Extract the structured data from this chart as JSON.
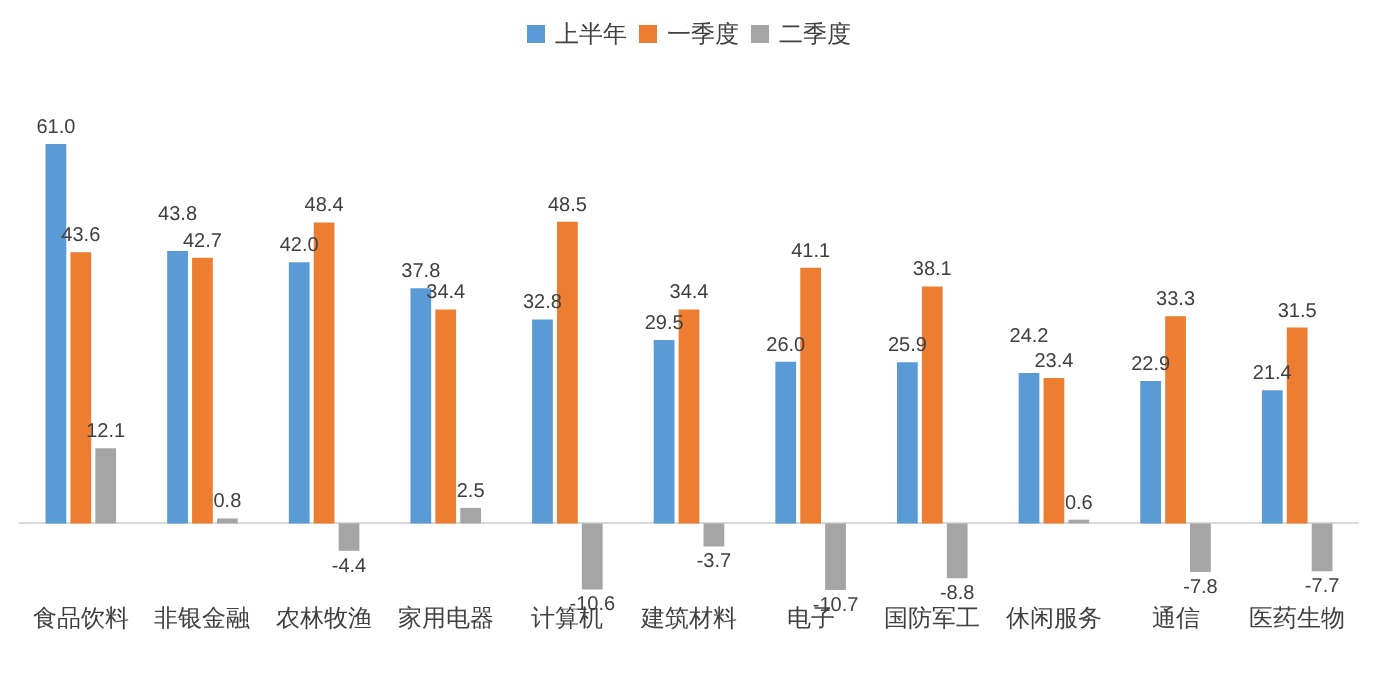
{
  "chart_data": {
    "type": "bar",
    "categories": [
      "食品饮料",
      "非银金融",
      "农林牧渔",
      "家用电器",
      "计算机",
      "建筑材料",
      "电子",
      "国防军工",
      "休闲服务",
      "通信",
      "医药生物"
    ],
    "series": [
      {
        "name": "上半年",
        "color": "#5b9bd5",
        "values": [
          61.0,
          43.8,
          42.0,
          37.8,
          32.8,
          29.5,
          26.0,
          25.9,
          24.2,
          22.9,
          21.4
        ],
        "value_labels": [
          "61.0",
          "43.8",
          "42.0",
          "37.8",
          "32.8",
          "29.5",
          "26.0",
          "25.9",
          "24.2",
          "22.9",
          "21.4"
        ]
      },
      {
        "name": "一季度",
        "color": "#ed7d31",
        "values": [
          43.6,
          42.7,
          48.4,
          34.4,
          48.5,
          34.4,
          41.1,
          38.1,
          23.4,
          33.3,
          31.5
        ],
        "value_labels": [
          "43.6",
          "42.7",
          "48.4",
          "34.4",
          "48.5",
          "34.4",
          "41.1",
          "38.1",
          "23.4",
          "33.3",
          "31.5"
        ]
      },
      {
        "name": "二季度",
        "color": "#a5a5a5",
        "values": [
          12.1,
          0.8,
          -4.4,
          2.5,
          -10.6,
          -3.7,
          -10.7,
          -8.8,
          0.6,
          -7.8,
          -7.7
        ],
        "value_labels": [
          "12.1",
          "0.8",
          "-4.4",
          "2.5",
          "-10.6",
          "-3.7",
          "-10.7",
          "-8.8",
          "0.6",
          "-7.8",
          "-7.7"
        ]
      }
    ],
    "legend": "top",
    "grid": false
  }
}
